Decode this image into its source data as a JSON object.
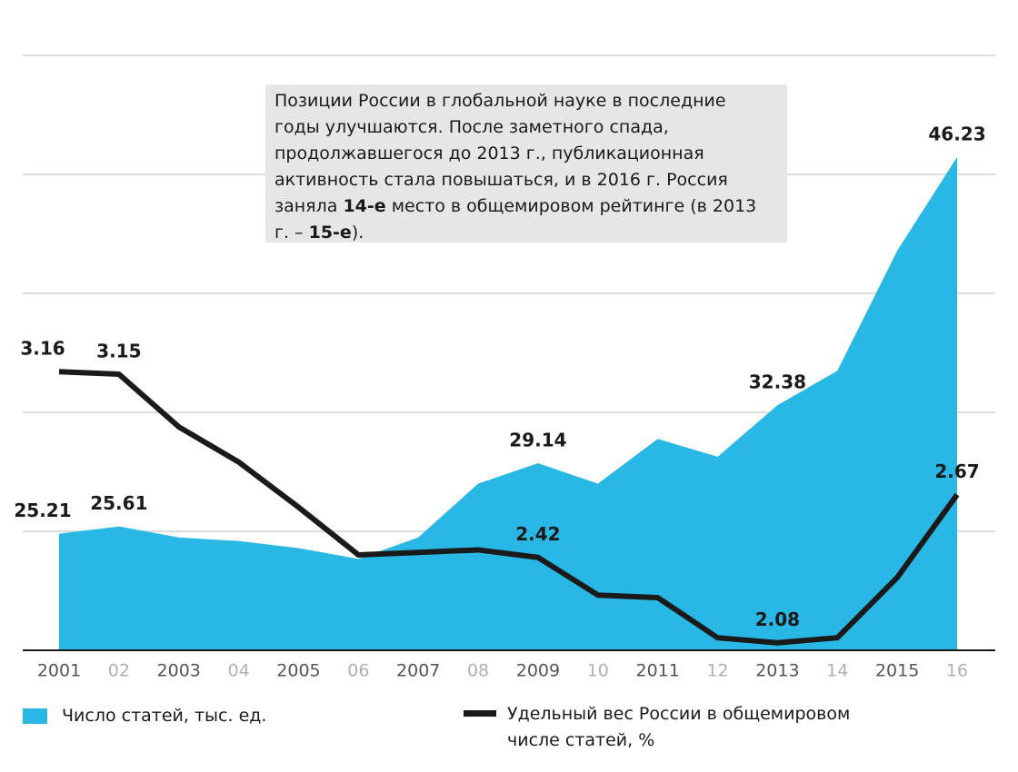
{
  "chart_data": {
    "type": "area-line",
    "annotation": [
      {
        "text": "Позиции России в глобальной науке в последние годы улучшаются. После заметного спада, продолжавшегося до 2013 г., публикационная активность стала повышаться, и в 2016 г. Россия заняла ",
        "bold": false
      },
      {
        "text": "14-е",
        "bold": true
      },
      {
        "text": " место в общемировом рейтинге (в 2013 г. – ",
        "bold": false
      },
      {
        "text": "15-е",
        "bold": true
      },
      {
        "text": ").",
        "bold": false
      }
    ],
    "categories": [
      "2001",
      "02",
      "2003",
      "04",
      "2005",
      "06",
      "2007",
      "08",
      "2009",
      "10",
      "2011",
      "12",
      "2013",
      "14",
      "2015",
      "16"
    ],
    "series": [
      {
        "name": "Число статей, тыс. ед.",
        "type": "area",
        "color": "#29b8e5",
        "values": [
          25.21,
          25.61,
          25.0,
          24.8,
          24.4,
          23.8,
          25.0,
          28.0,
          29.14,
          28.0,
          30.5,
          29.5,
          32.38,
          34.3,
          41.0,
          46.23
        ],
        "value_labels": [
          "25.21",
          "25.61",
          null,
          null,
          null,
          null,
          null,
          null,
          "29.14",
          null,
          null,
          null,
          "32.38",
          null,
          null,
          "46.23"
        ]
      },
      {
        "name": "Удельный вес России в общемировом числе статей, %",
        "type": "line",
        "axis": "y2",
        "color": "#1a1a1a",
        "values": [
          3.16,
          3.15,
          2.94,
          2.8,
          2.62,
          2.43,
          2.44,
          2.45,
          2.42,
          2.27,
          2.26,
          2.1,
          2.08,
          2.1,
          2.34,
          2.67
        ],
        "value_labels": [
          "3.16",
          "3.15",
          null,
          null,
          null,
          null,
          null,
          null,
          "2.42",
          null,
          null,
          null,
          "2.08",
          null,
          null,
          "2.67"
        ]
      }
    ],
    "ylim": [
      18.7,
      51.9
    ],
    "y2lim": [
      2.05,
      4.42
    ],
    "grid": true
  }
}
